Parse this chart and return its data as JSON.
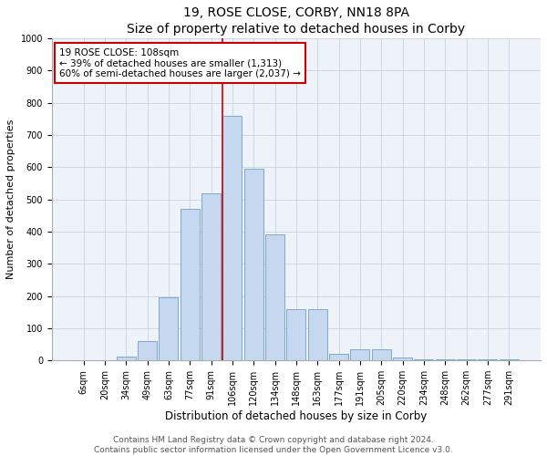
{
  "title": "19, ROSE CLOSE, CORBY, NN18 8PA",
  "subtitle": "Size of property relative to detached houses in Corby",
  "xlabel": "Distribution of detached houses by size in Corby",
  "ylabel": "Number of detached properties",
  "categories": [
    "6sqm",
    "20sqm",
    "34sqm",
    "49sqm",
    "63sqm",
    "77sqm",
    "91sqm",
    "106sqm",
    "120sqm",
    "134sqm",
    "148sqm",
    "163sqm",
    "177sqm",
    "191sqm",
    "205sqm",
    "220sqm",
    "234sqm",
    "248sqm",
    "262sqm",
    "277sqm",
    "291sqm"
  ],
  "values": [
    0,
    0,
    13,
    60,
    197,
    470,
    520,
    760,
    595,
    390,
    160,
    160,
    20,
    35,
    35,
    8,
    5,
    5,
    5,
    5,
    5
  ],
  "bar_color": "#c5d8f0",
  "bar_edge_color": "#5a8fc2",
  "marker_index": 7,
  "marker_color": "#cc0000",
  "ylim": [
    0,
    1000
  ],
  "yticks": [
    0,
    100,
    200,
    300,
    400,
    500,
    600,
    700,
    800,
    900,
    1000
  ],
  "annotation_text": "19 ROSE CLOSE: 108sqm\n← 39% of detached houses are smaller (1,313)\n60% of semi-detached houses are larger (2,037) →",
  "annotation_box_color": "#ffffff",
  "annotation_box_edge": "#cc0000",
  "footer_line1": "Contains HM Land Registry data © Crown copyright and database right 2024.",
  "footer_line2": "Contains public sector information licensed under the Open Government Licence v3.0.",
  "background_color": "#eef3fa",
  "title_fontsize": 10,
  "xlabel_fontsize": 8.5,
  "ylabel_fontsize": 8,
  "tick_fontsize": 7,
  "annotation_fontsize": 7.5,
  "footer_fontsize": 6.5
}
